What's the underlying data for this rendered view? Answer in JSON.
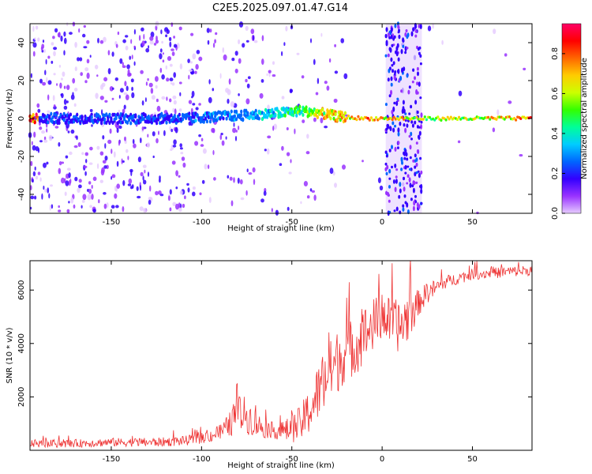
{
  "figure": {
    "title": "C2E5.2025.097.01.47.G14"
  },
  "chart_data": [
    {
      "type": "heatmap",
      "title": "C2E5.2025.097.01.47.G14",
      "xlabel": "Height of straight line (km)",
      "ylabel": "Frequency (Hz)",
      "xlim": [
        -195,
        83
      ],
      "ylim": [
        -50,
        50
      ],
      "xticks": [
        -150,
        -100,
        -50,
        0,
        50
      ],
      "yticks": [
        -40,
        -20,
        0,
        20,
        40
      ],
      "colorbar": {
        "label": "Normalized spectral amplitude",
        "range": [
          0,
          0.95
        ],
        "ticks": [
          0.0,
          0.2,
          0.4,
          0.6,
          0.8
        ],
        "tick_labels": [
          "0.0",
          "0.2",
          "0.4",
          "0.6",
          "0.8"
        ],
        "colormap": [
          "#e6ccff",
          "#9933ff",
          "#3300ff",
          "#0066ff",
          "#00ccff",
          "#00ff99",
          "#33ff00",
          "#ccff00",
          "#ffcc00",
          "#ff6600",
          "#ff0000",
          "#ff0066"
        ]
      },
      "features": {
        "carrier_band": [
          {
            "x": -190,
            "freq": 0,
            "amp": 0.25
          },
          {
            "x": -150,
            "freq": 0,
            "amp": 0.28
          },
          {
            "x": -110,
            "freq": 0,
            "amp": 0.3
          },
          {
            "x": -90,
            "freq": 1,
            "amp": 0.35
          },
          {
            "x": -70,
            "freq": 2,
            "amp": 0.4
          },
          {
            "x": -55,
            "freq": 3,
            "amp": 0.5
          },
          {
            "x": -45,
            "freq": 4,
            "amp": 0.6
          },
          {
            "x": -35,
            "freq": 3,
            "amp": 0.75
          },
          {
            "x": -25,
            "freq": 1,
            "amp": 0.85
          },
          {
            "x": -10,
            "freq": 0,
            "amp": 0.9
          },
          {
            "x": 25,
            "freq": 0,
            "amp": 0.7
          },
          {
            "x": 50,
            "freq": 0,
            "amp": 0.75
          },
          {
            "x": 83,
            "freq": 0,
            "amp": 0.95
          }
        ],
        "noisy_vertical_band_km": [
          2,
          22
        ]
      },
      "grid": false
    },
    {
      "type": "line",
      "xlabel": "Height of straight line (km)",
      "ylabel": "SNR (10 * v/v)",
      "xlim": [
        -195,
        83
      ],
      "ylim": [
        0,
        7100
      ],
      "xticks": [
        -150,
        -100,
        -50,
        0,
        50
      ],
      "yticks": [
        2000,
        4000,
        6000
      ],
      "color": "#ee3333",
      "series": [
        {
          "x": [
            -195,
            -175,
            -150,
            -125,
            -110,
            -100,
            -90,
            -85,
            -80,
            -75,
            -70,
            -65,
            -60,
            -55,
            -50,
            -45,
            -40,
            -35,
            -30,
            -25,
            -20,
            -15,
            -10,
            -5,
            0,
            5,
            10,
            15,
            20,
            25,
            30,
            35,
            40,
            45,
            50,
            55,
            60,
            65,
            70,
            75,
            83
          ],
          "y": [
            250,
            250,
            300,
            300,
            350,
            450,
            650,
            900,
            1400,
            1300,
            1000,
            800,
            750,
            700,
            800,
            1000,
            1500,
            2200,
            2800,
            3300,
            3700,
            3900,
            4300,
            4700,
            5000,
            4800,
            4600,
            5100,
            5500,
            5900,
            6100,
            6300,
            6400,
            6500,
            6600,
            6600,
            6650,
            6650,
            6700,
            6700,
            6750
          ],
          "noise": [
            150,
            150,
            160,
            170,
            180,
            200,
            300,
            450,
            700,
            700,
            500,
            350,
            300,
            400,
            500,
            700,
            900,
            1100,
            1200,
            1200,
            1100,
            1100,
            1100,
            1000,
            900,
            900,
            1000,
            1000,
            500,
            400,
            300,
            250,
            220,
            220,
            200,
            200,
            200,
            200,
            200,
            200,
            200
          ]
        }
      ],
      "grid": false
    }
  ]
}
